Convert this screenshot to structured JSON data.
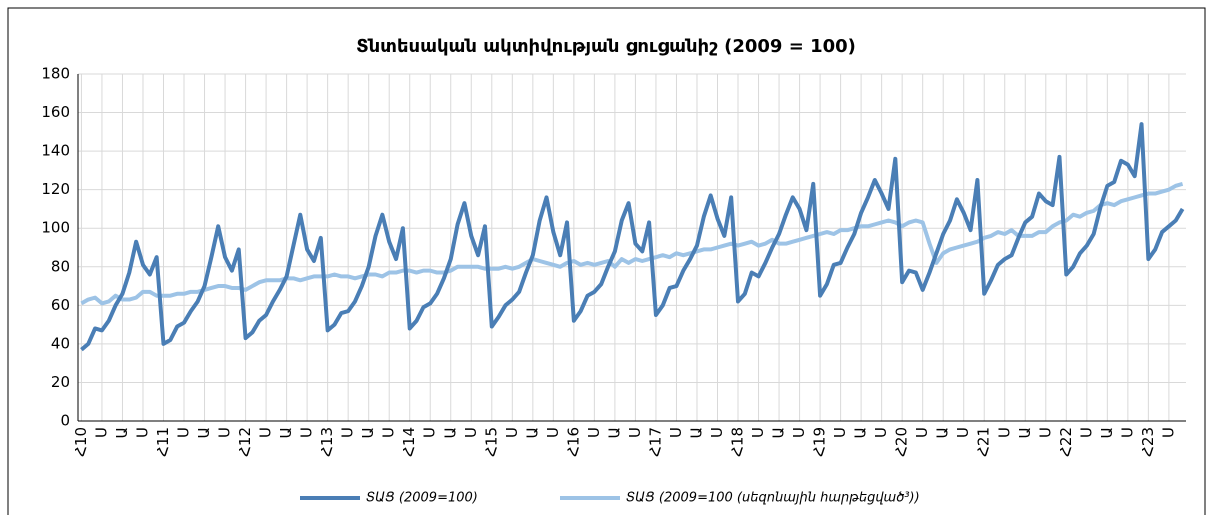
{
  "chart_data": {
    "type": "line",
    "title": "Տնտեսական ակտիվության ցուցանիշ (2009 = 100)",
    "categories": [
      "Հ10",
      null,
      null,
      "Ս",
      null,
      null,
      "Ա",
      null,
      null,
      "Ս",
      null,
      null,
      "Հ11",
      null,
      null,
      "Ս",
      null,
      null,
      "Ա",
      null,
      null,
      "Ս",
      null,
      null,
      "Հ12",
      null,
      null,
      "Ս",
      null,
      null,
      "Ա",
      null,
      null,
      "Ս",
      null,
      null,
      "Հ13",
      null,
      null,
      "Ս",
      null,
      null,
      "Ա",
      null,
      null,
      "Ս",
      null,
      null,
      "Հ14",
      null,
      null,
      "Ս",
      null,
      null,
      "Ա",
      null,
      null,
      "Ս",
      null,
      null,
      "Հ15",
      null,
      null,
      "Ս",
      null,
      null,
      "Ա",
      null,
      null,
      "Ս",
      null,
      null,
      "Հ16",
      null,
      null,
      "Ս",
      null,
      null,
      "Ա",
      null,
      null,
      "Ս",
      null,
      null,
      "Հ17",
      null,
      null,
      "Ս",
      null,
      null,
      "Ա",
      null,
      null,
      "Ս",
      null,
      null,
      "Հ18",
      null,
      null,
      "Ս",
      null,
      null,
      "Ա",
      null,
      null,
      "Ս",
      null,
      null,
      "Հ19",
      null,
      null,
      "Ս",
      null,
      null,
      "Ա",
      null,
      null,
      "Ս",
      null,
      null,
      "Հ20",
      null,
      null,
      "Ս",
      null,
      null,
      "Ա",
      null,
      null,
      "Ս",
      null,
      null,
      "Հ21",
      null,
      null,
      "Ս",
      null,
      null,
      "Ա",
      null,
      null,
      "Ս",
      null,
      null,
      "Հ22",
      null,
      null,
      "Ս",
      null,
      null,
      "Ա",
      null,
      null,
      "Ս",
      null,
      null,
      "Հ23",
      null,
      null,
      "Ս",
      null,
      null
    ],
    "series": [
      {
        "name": "ՏԱՑ (2009=100)",
        "color": "#4a7eb5",
        "values": [
          37,
          40,
          48,
          47,
          52,
          60,
          66,
          77,
          93,
          81,
          76,
          85,
          40,
          42,
          49,
          51,
          57,
          62,
          70,
          85,
          101,
          85,
          78,
          89,
          43,
          46,
          52,
          55,
          62,
          68,
          75,
          91,
          107,
          89,
          83,
          95,
          47,
          50,
          56,
          57,
          62,
          70,
          80,
          96,
          107,
          93,
          84,
          100,
          48,
          52,
          59,
          61,
          66,
          74,
          84,
          102,
          113,
          96,
          86,
          101,
          49,
          54,
          60,
          63,
          67,
          77,
          86,
          104,
          116,
          98,
          86,
          103,
          52,
          57,
          65,
          67,
          71,
          80,
          88,
          104,
          113,
          92,
          88,
          103,
          55,
          60,
          69,
          70,
          78,
          84,
          91,
          106,
          117,
          105,
          96,
          116,
          62,
          66,
          77,
          75,
          82,
          90,
          97,
          107,
          116,
          110,
          99,
          123,
          65,
          71,
          81,
          82,
          90,
          97,
          108,
          116,
          125,
          118,
          110,
          136,
          72,
          78,
          77,
          68,
          77,
          87,
          97,
          104,
          115,
          108,
          99,
          125,
          66,
          73,
          81,
          84,
          86,
          95,
          103,
          106,
          118,
          114,
          112,
          137,
          76,
          80,
          87,
          91,
          97,
          111,
          122,
          124,
          135,
          133,
          127,
          154,
          84,
          89,
          98,
          101,
          104,
          110
        ]
      },
      {
        "name": "ՏԱՑ (2009=100 (սեզոնային հարթեցված³))",
        "color": "#9dc3e6",
        "values": [
          61,
          63,
          64,
          61,
          62,
          65,
          63,
          63,
          64,
          67,
          67,
          65,
          65,
          65,
          66,
          66,
          67,
          67,
          68,
          69,
          70,
          70,
          69,
          69,
          68,
          70,
          72,
          73,
          73,
          73,
          74,
          74,
          73,
          74,
          75,
          75,
          75,
          76,
          75,
          75,
          74,
          75,
          76,
          76,
          75,
          77,
          77,
          78,
          78,
          77,
          78,
          78,
          77,
          77,
          78,
          80,
          80,
          80,
          80,
          79,
          79,
          79,
          80,
          79,
          80,
          82,
          84,
          83,
          82,
          81,
          80,
          82,
          83,
          81,
          82,
          81,
          82,
          83,
          80,
          84,
          82,
          84,
          83,
          84,
          85,
          86,
          85,
          87,
          86,
          87,
          88,
          89,
          89,
          90,
          91,
          92,
          91,
          92,
          93,
          91,
          92,
          94,
          92,
          92,
          93,
          94,
          95,
          96,
          97,
          98,
          97,
          99,
          99,
          100,
          101,
          101,
          102,
          103,
          104,
          103,
          101,
          103,
          104,
          103,
          92,
          82,
          87,
          89,
          90,
          91,
          92,
          93,
          95,
          96,
          98,
          97,
          99,
          96,
          96,
          96,
          98,
          98,
          101,
          103,
          104,
          107,
          106,
          108,
          109,
          112,
          113,
          112,
          114,
          115,
          116,
          117,
          118,
          118,
          119,
          120,
          122,
          123
        ]
      }
    ],
    "ylim": [
      0,
      180
    ],
    "yticks": [
      0,
      20,
      40,
      60,
      80,
      100,
      120,
      140,
      160,
      180
    ],
    "grid": true,
    "legend": "bottom"
  }
}
